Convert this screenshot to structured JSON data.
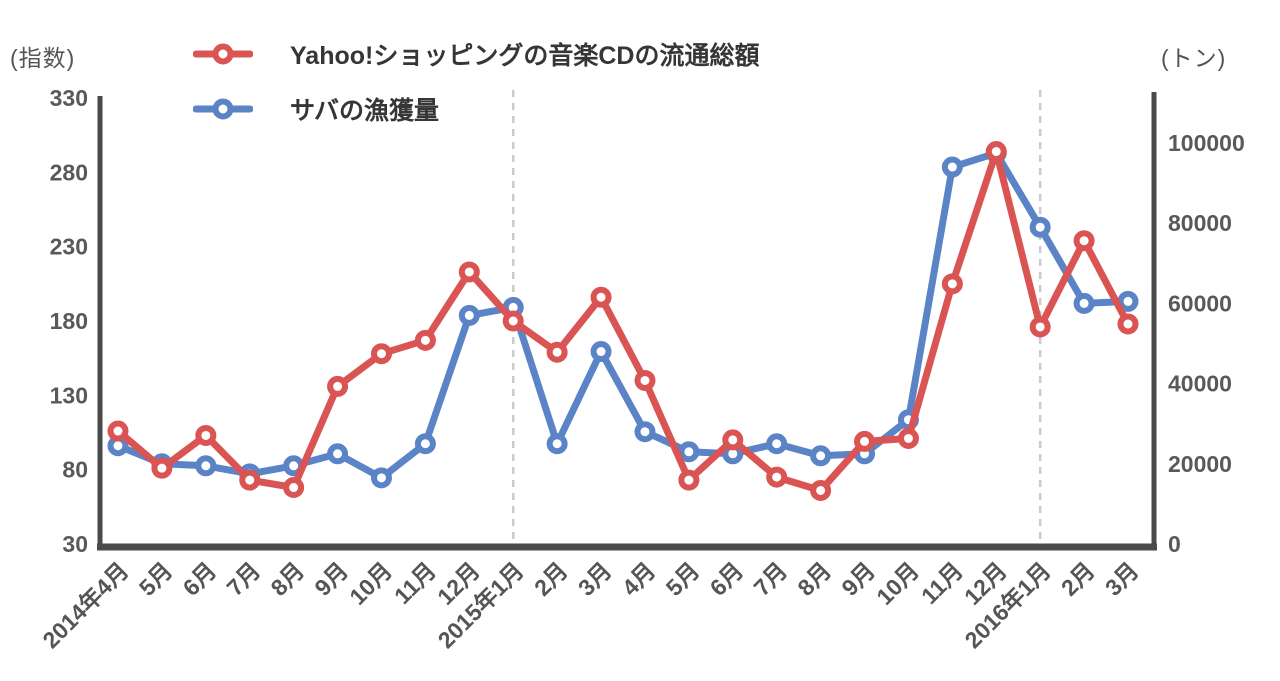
{
  "header": {
    "left_axis_unit": "(指数)",
    "right_axis_unit": "(トン)"
  },
  "chart_data": {
    "type": "line",
    "title": "",
    "categories": [
      "2014年4月",
      "5月",
      "6月",
      "7月",
      "8月",
      "9月",
      "10月",
      "11月",
      "12月",
      "2015年1月",
      "2月",
      "3月",
      "4月",
      "5月",
      "6月",
      "7月",
      "8月",
      "9月",
      "10月",
      "11月",
      "12月",
      "2016年1月",
      "2月",
      "3月"
    ],
    "series": [
      {
        "name": "Yahoo!ショッピングの音楽CDの流通総額",
        "axis": "left",
        "color": "#d95452",
        "values": [
          106,
          81,
          103,
          73,
          68,
          136,
          158,
          167,
          213,
          180,
          159,
          196,
          140,
          73,
          100,
          75,
          66,
          99,
          101,
          205,
          294,
          176,
          234,
          178
        ]
      },
      {
        "name": "サバの漁獲量",
        "axis": "right",
        "color": "#5b84c7",
        "values": [
          24500,
          20000,
          19500,
          17500,
          19500,
          22500,
          16500,
          25000,
          57000,
          59000,
          25000,
          48000,
          28000,
          23000,
          22500,
          25000,
          22000,
          22500,
          31000,
          94000,
          97500,
          79000,
          60000,
          60500
        ]
      }
    ],
    "left_axis": {
      "unit": "(指数)",
      "min": 30,
      "max": 330,
      "ticks": [
        330,
        280,
        230,
        180,
        130,
        80,
        30
      ]
    },
    "right_axis": {
      "unit": "(トン)",
      "min": 0,
      "max": 100000,
      "ticks": [
        100000,
        80000,
        60000,
        40000,
        20000,
        0
      ]
    },
    "annotations": {
      "dashed_vlines_at": [
        "2015年1月",
        "2016年1月"
      ]
    },
    "legend_position": "top-left",
    "grid": false,
    "styles": {
      "axis_color": "#4a4a4a",
      "tick_label_color": "#595959",
      "x_label_color": "#555555",
      "dashed_line_color": "#cbcbcb",
      "marker_fill": "#ffffff"
    }
  }
}
